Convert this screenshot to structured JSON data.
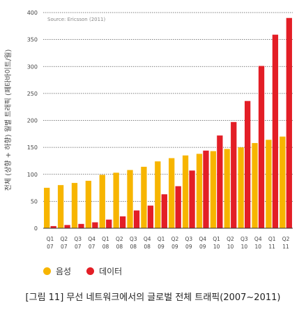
{
  "chart_data": {
    "type": "bar",
    "source": "Source: Ericsson (2011)",
    "ylabel": "전체 (상향 + 하향) 월별 트래픽 (페타바이트/월)",
    "ylim": [
      0,
      400
    ],
    "yticks": [
      0,
      50,
      100,
      150,
      200,
      250,
      300,
      350,
      400
    ],
    "categories": [
      [
        "Q1",
        "07"
      ],
      [
        "Q2",
        "07"
      ],
      [
        "Q3",
        "07"
      ],
      [
        "Q4",
        "07"
      ],
      [
        "Q1",
        "08"
      ],
      [
        "Q2",
        "08"
      ],
      [
        "Q3",
        "08"
      ],
      [
        "Q4",
        "08"
      ],
      [
        "Q1",
        "09"
      ],
      [
        "Q2",
        "09"
      ],
      [
        "Q3",
        "09"
      ],
      [
        "Q4",
        "09"
      ],
      [
        "Q1",
        "10"
      ],
      [
        "Q2",
        "10"
      ],
      [
        "Q3",
        "10"
      ],
      [
        "Q4",
        "10"
      ],
      [
        "Q1",
        "11"
      ],
      [
        "Q2",
        "11"
      ]
    ],
    "series": [
      {
        "name": "음성",
        "color": "#f7b500",
        "values": [
          75,
          80,
          84,
          88,
          99,
          103,
          108,
          114,
          124,
          130,
          135,
          138,
          143,
          147,
          150,
          158,
          164,
          170
        ]
      },
      {
        "name": "데이터",
        "color": "#e31e26",
        "values": [
          4,
          6,
          8,
          11,
          16,
          22,
          33,
          42,
          63,
          78,
          107,
          144,
          172,
          197,
          236,
          301,
          359,
          390
        ]
      }
    ],
    "grid": true,
    "legend_position": "bottom-left"
  },
  "caption": "[그림 11] 무선 네트워크에서의 글로벌 전체 트래픽(2007~2011)"
}
